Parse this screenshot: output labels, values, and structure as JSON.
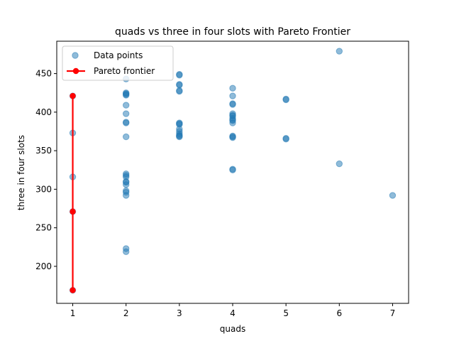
{
  "chart_data": {
    "type": "scatter",
    "title": "quads vs three in four slots with Pareto Frontier",
    "xlabel": "quads",
    "ylabel": "three in four slots",
    "xlim": [
      0.7,
      7.3
    ],
    "ylim": [
      152,
      492
    ],
    "xticks": [
      1,
      2,
      3,
      4,
      5,
      6,
      7
    ],
    "yticks": [
      200,
      250,
      300,
      350,
      400,
      450
    ],
    "grid": false,
    "legend_position": "top-left",
    "series": [
      {
        "name": "Data points",
        "kind": "scatter",
        "color": "#1f77b4",
        "points": [
          [
            1,
            421
          ],
          [
            1,
            373
          ],
          [
            1,
            316
          ],
          [
            1,
            271
          ],
          [
            1,
            169
          ],
          [
            2,
            443
          ],
          [
            2,
            425
          ],
          [
            2,
            424
          ],
          [
            2,
            423
          ],
          [
            2,
            422
          ],
          [
            2,
            409
          ],
          [
            2,
            398
          ],
          [
            2,
            387
          ],
          [
            2,
            386
          ],
          [
            2,
            368
          ],
          [
            2,
            320
          ],
          [
            2,
            318
          ],
          [
            2,
            316
          ],
          [
            2,
            310
          ],
          [
            2,
            309
          ],
          [
            2,
            306
          ],
          [
            2,
            298
          ],
          [
            2,
            296
          ],
          [
            2,
            292
          ],
          [
            2,
            223
          ],
          [
            2,
            219
          ],
          [
            3,
            449
          ],
          [
            3,
            448
          ],
          [
            3,
            436
          ],
          [
            3,
            435
          ],
          [
            3,
            428
          ],
          [
            3,
            427
          ],
          [
            3,
            386
          ],
          [
            3,
            385
          ],
          [
            3,
            384
          ],
          [
            3,
            378
          ],
          [
            3,
            375
          ],
          [
            3,
            372
          ],
          [
            3,
            370
          ],
          [
            3,
            369
          ],
          [
            3,
            368
          ],
          [
            4,
            431
          ],
          [
            4,
            421
          ],
          [
            4,
            411
          ],
          [
            4,
            410
          ],
          [
            4,
            398
          ],
          [
            4,
            396
          ],
          [
            4,
            395
          ],
          [
            4,
            392
          ],
          [
            4,
            390
          ],
          [
            4,
            389
          ],
          [
            4,
            386
          ],
          [
            4,
            369
          ],
          [
            4,
            368
          ],
          [
            4,
            367
          ],
          [
            4,
            326
          ],
          [
            4,
            325
          ],
          [
            5,
            417
          ],
          [
            5,
            416
          ],
          [
            5,
            366
          ],
          [
            5,
            365
          ],
          [
            6,
            479
          ],
          [
            6,
            333
          ],
          [
            7,
            292
          ]
        ]
      },
      {
        "name": "Pareto frontier",
        "kind": "line",
        "color": "#ff0000",
        "points": [
          [
            1,
            421
          ],
          [
            1,
            271
          ],
          [
            1,
            169
          ]
        ]
      }
    ]
  }
}
